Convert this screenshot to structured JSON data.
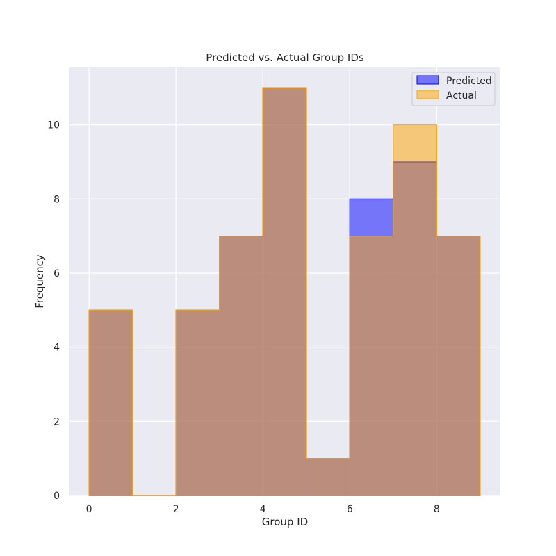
{
  "chart_data": {
    "type": "bar",
    "title": "Predicted vs. Actual Group IDs",
    "xlabel": "Group ID",
    "ylabel": "Frequency",
    "xlim": [
      -0.45,
      9.45
    ],
    "ylim": [
      0,
      11.55
    ],
    "xticks": [
      0,
      2,
      4,
      6,
      8
    ],
    "yticks": [
      0,
      2,
      4,
      6,
      8,
      10
    ],
    "bin_edges": [
      0,
      1,
      2,
      3,
      4,
      5,
      6,
      7,
      8,
      9
    ],
    "grid": true,
    "legend_position": "top-right",
    "series": [
      {
        "name": "Predicted",
        "values": [
          5,
          0,
          5,
          7,
          11,
          1,
          8,
          9,
          7
        ],
        "color": "#0000ff",
        "fill_opacity": 0.5
      },
      {
        "name": "Actual",
        "values": [
          5,
          0,
          5,
          7,
          11,
          1,
          7,
          10,
          7
        ],
        "color": "#ffa500",
        "fill_opacity": 0.5
      }
    ],
    "background_color": "#eaeaf2",
    "grid_color": "#ffffff"
  }
}
